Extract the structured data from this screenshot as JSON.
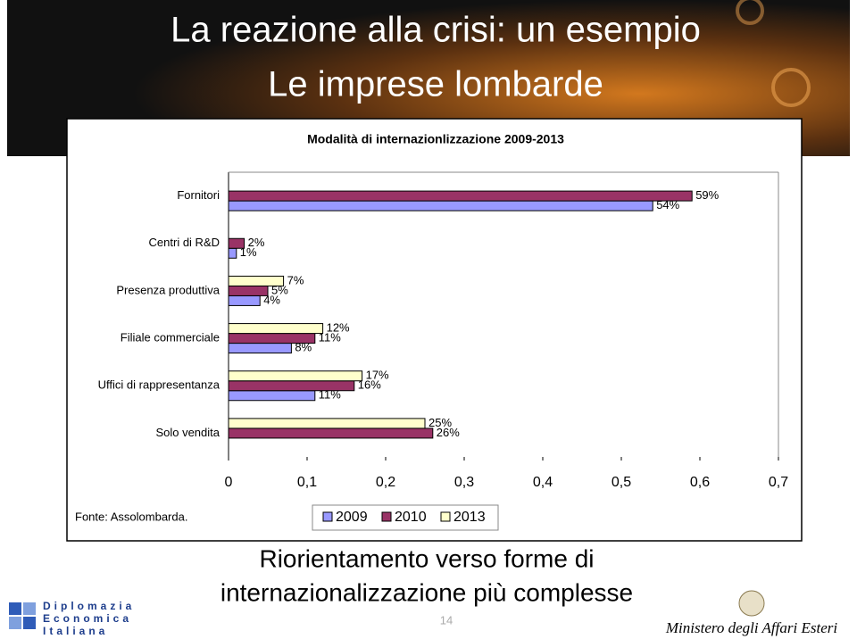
{
  "header": {
    "title": "La reazione alla crisi: un esempio",
    "subtitle": "Le imprese lombarde"
  },
  "chart_data": {
    "type": "hbar",
    "title": "Modalità di internazionlizzazione 2009-2013",
    "categories": [
      "Fornitori",
      "Centri di R&D",
      "Presenza produttiva",
      "Filiale commerciale",
      "Uffici di rappresentanza",
      "Solo vendita"
    ],
    "series": [
      {
        "name": "2009",
        "color": "#9999ff",
        "values": [
          0.54,
          0.01,
          0.04,
          0.08,
          0.11,
          null
        ],
        "value_labels": [
          "54%",
          "1%",
          "4%",
          "8%",
          "11%",
          null
        ]
      },
      {
        "name": "2010",
        "color": "#993366",
        "values": [
          0.59,
          0.02,
          0.05,
          0.11,
          0.16,
          0.26
        ],
        "value_labels": [
          "59%",
          "2%",
          "5%",
          "11%",
          "16%",
          "26%"
        ]
      },
      {
        "name": "2013",
        "color": "#ffffcc",
        "values": [
          null,
          null,
          0.07,
          0.12,
          0.17,
          0.25
        ],
        "value_labels": [
          null,
          null,
          "7%",
          "12%",
          "17%",
          "25%"
        ]
      }
    ],
    "xlim": [
      0,
      0.7
    ],
    "xticks": [
      0,
      {
        "value": 0.1,
        "label": "0,1"
      },
      {
        "value": 0.2,
        "label": "0,2"
      },
      {
        "value": 0.3,
        "label": "0,3"
      },
      {
        "value": 0.4,
        "label": "0,4"
      },
      {
        "value": 0.5,
        "label": "0,5"
      },
      {
        "value": 0.6,
        "label": "0,6"
      },
      {
        "value": 0.7,
        "label": "0,7"
      }
    ],
    "source": "Fonte: Assolombarda."
  },
  "footer": {
    "caption": [
      "Riorientamento verso forme di",
      "internazionalizzazione più complesse"
    ],
    "page": "14",
    "logo": [
      "Diplomazia",
      "Economica",
      "Italiana"
    ],
    "ministry": "Ministero degli Affari Esteri"
  }
}
